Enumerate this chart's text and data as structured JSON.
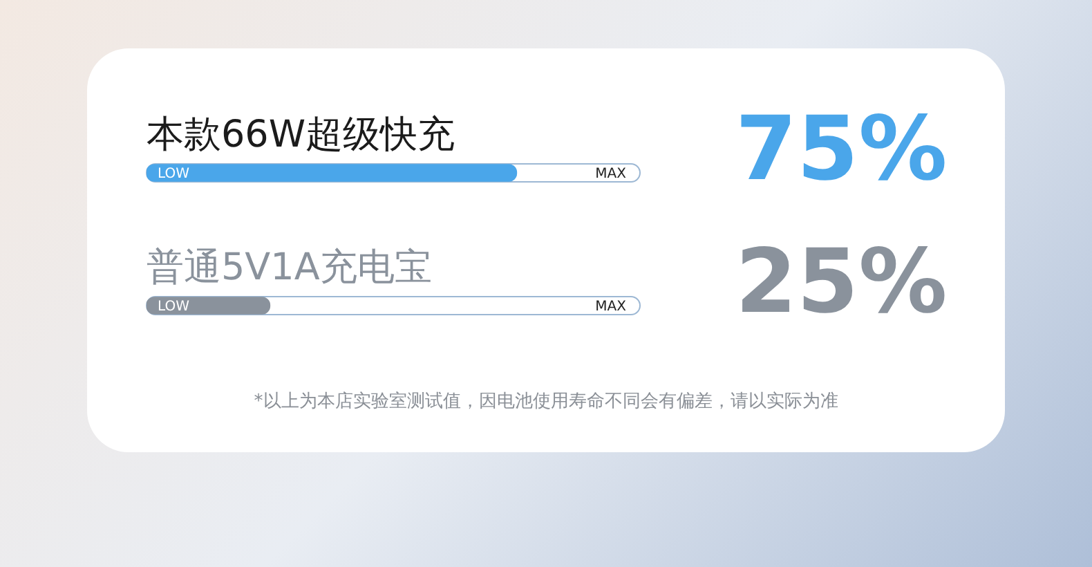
{
  "chart_data": {
    "type": "bar",
    "orientation": "horizontal",
    "categories": [
      "本款66W超级快充",
      "普通5V1A充电宝"
    ],
    "values": [
      75,
      25
    ],
    "colors": [
      "#4aa6ea",
      "#8a929c"
    ],
    "value_labels": [
      "75%",
      "25%"
    ],
    "xlim": [
      0,
      100
    ],
    "legend": false,
    "annotations": [
      "LOW",
      "MAX",
      "LOW",
      "MAX",
      "*以上为本店实验室测试值，因电池使用寿命不同会有偏差，请以实际为准"
    ]
  }
}
